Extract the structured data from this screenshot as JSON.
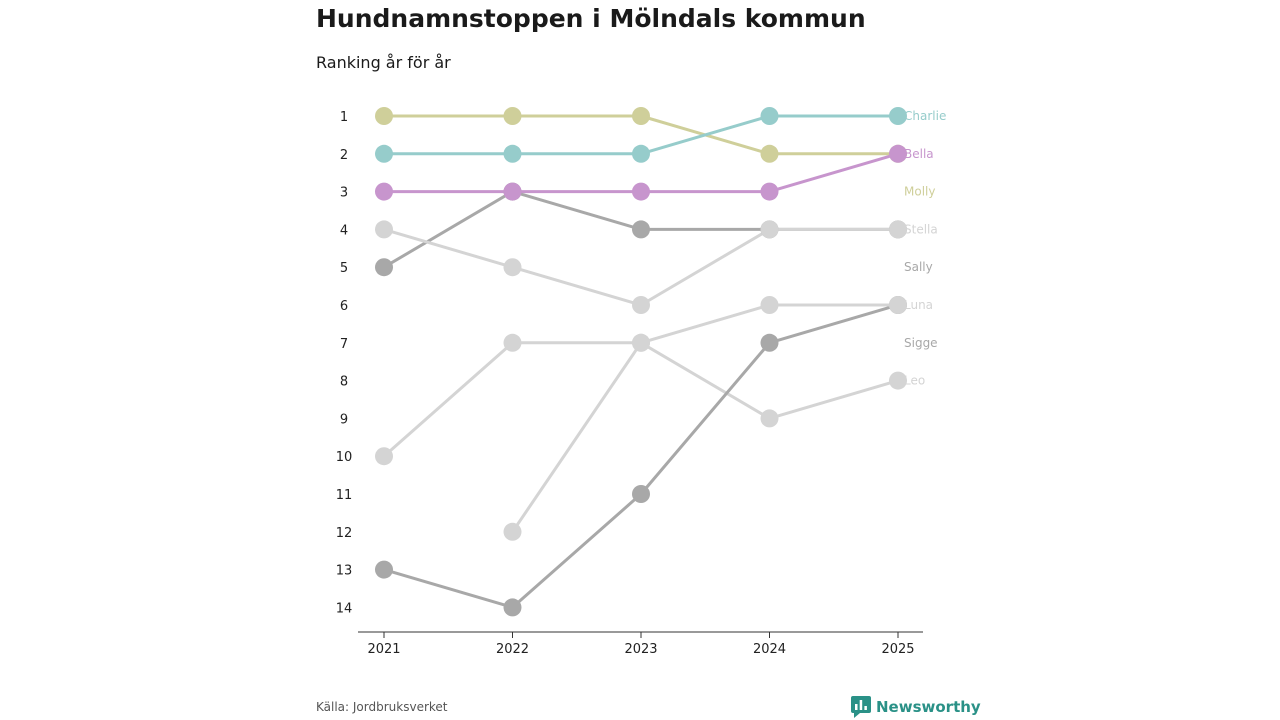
{
  "title": "Hundnamnstoppen i Mölndals kommun",
  "subtitle": "Ranking år för år",
  "source": "Källa: Jordbruksverket",
  "brand": {
    "name": "Newsworthy",
    "icon": "bar-chart-icon",
    "color": "#2a9187"
  },
  "chart_data": {
    "type": "line",
    "subtype": "bump",
    "title": "Hundnamnstoppen i Mölndals kommun",
    "subtitle": "Ranking år för år",
    "xlabel": "",
    "ylabel": "",
    "categories": [
      "2021",
      "2022",
      "2023",
      "2024",
      "2025"
    ],
    "y_ticks": [
      "1",
      "2",
      "3",
      "4",
      "5",
      "6",
      "7",
      "8",
      "9",
      "10",
      "11",
      "12",
      "13",
      "14"
    ],
    "ylim": [
      1,
      14
    ],
    "y_inverted": true,
    "grid": false,
    "series": [
      {
        "name": "Charlie",
        "values": [
          2,
          2,
          2,
          1,
          1
        ],
        "color": "#96cccb"
      },
      {
        "name": "Bella",
        "values": [
          3,
          3,
          3,
          3,
          2
        ],
        "color": "#c795cd"
      },
      {
        "name": "Molly",
        "values": [
          1,
          1,
          1,
          2,
          2
        ],
        "color": "#cfcf9a"
      },
      {
        "name": "Stella",
        "values": [
          4,
          5,
          6,
          4,
          4
        ],
        "color": "#d4d4d4"
      },
      {
        "name": "Sally",
        "values": [
          5,
          3,
          4,
          4,
          4
        ],
        "color": "#a8a8a8"
      },
      {
        "name": "Luna",
        "values": [
          10,
          7,
          7,
          6,
          6
        ],
        "color": "#d4d4d4"
      },
      {
        "name": "Sigge",
        "values": [
          13,
          14,
          11,
          7,
          6
        ],
        "color": "#a8a8a8"
      },
      {
        "name": "Leo",
        "values": [
          null,
          12,
          7,
          9,
          8
        ],
        "color": "#d4d4d4"
      }
    ]
  }
}
